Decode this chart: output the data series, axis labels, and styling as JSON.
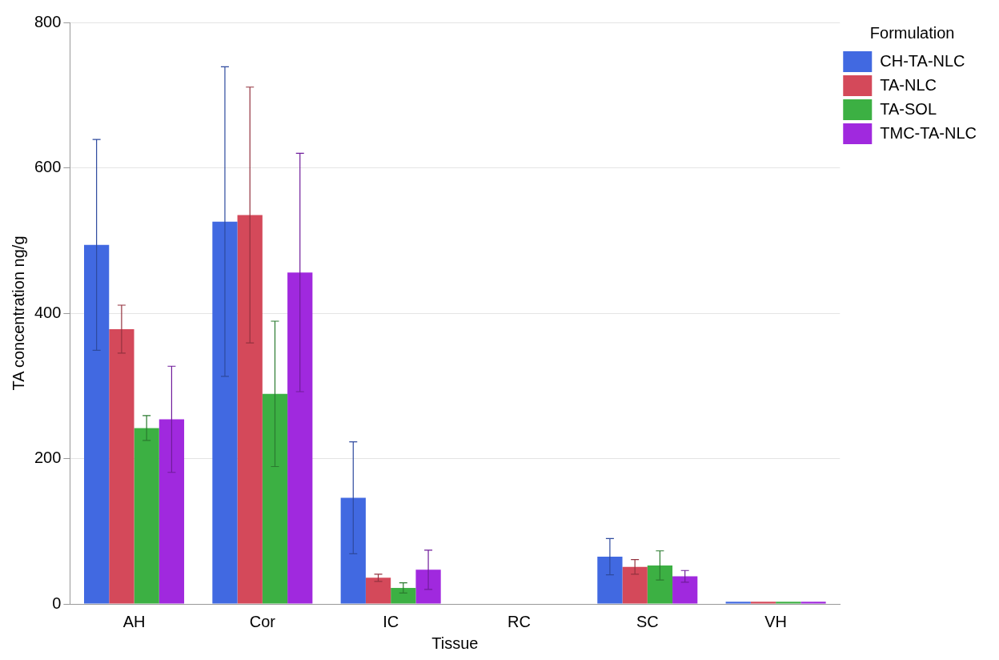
{
  "chart_data": {
    "type": "bar",
    "xlabel": "Tissue",
    "ylabel": "TA concentration ng/g",
    "legend_title": "Formulation",
    "legend": "right",
    "grid": "y",
    "categories": [
      "AH",
      "Cor",
      "IC",
      "RC",
      "SC",
      "VH"
    ],
    "ylim": [
      0,
      800
    ],
    "yticks": [
      0,
      200,
      400,
      600,
      800
    ],
    "series": [
      {
        "name": "CH-TA-NLC",
        "color": "#4169e1",
        "values": [
          494,
          526,
          146,
          null,
          65,
          3
        ],
        "errors": [
          145,
          213,
          77,
          null,
          25,
          null
        ]
      },
      {
        "name": "TA-NLC",
        "color": "#d4495a",
        "values": [
          378,
          535,
          36,
          null,
          51,
          3
        ],
        "errors": [
          33,
          176,
          5,
          null,
          10,
          null
        ]
      },
      {
        "name": "TA-SOL",
        "color": "#3cb043",
        "values": [
          242,
          289,
          22,
          null,
          53,
          3
        ],
        "errors": [
          17,
          100,
          7,
          null,
          20,
          null
        ]
      },
      {
        "name": "TMC-TA-NLC",
        "color": "#a029de",
        "values": [
          254,
          456,
          47,
          null,
          38,
          3
        ],
        "errors": [
          73,
          164,
          27,
          null,
          8,
          null
        ]
      }
    ]
  }
}
